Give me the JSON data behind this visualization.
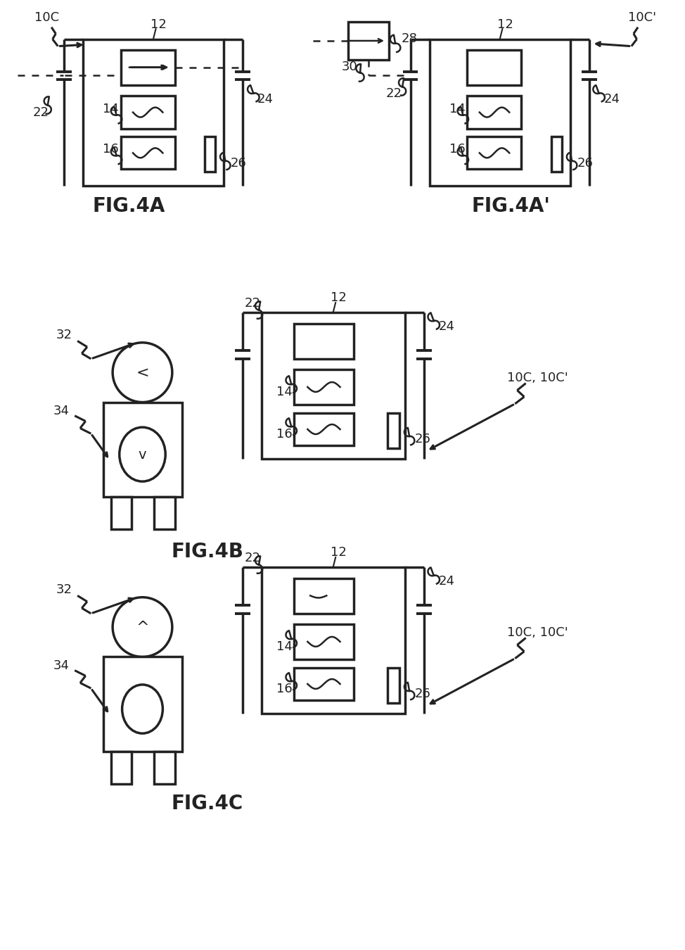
{
  "bg_color": "#ffffff",
  "line_color": "#222222",
  "lw": 2.0,
  "lw_thick": 2.5
}
